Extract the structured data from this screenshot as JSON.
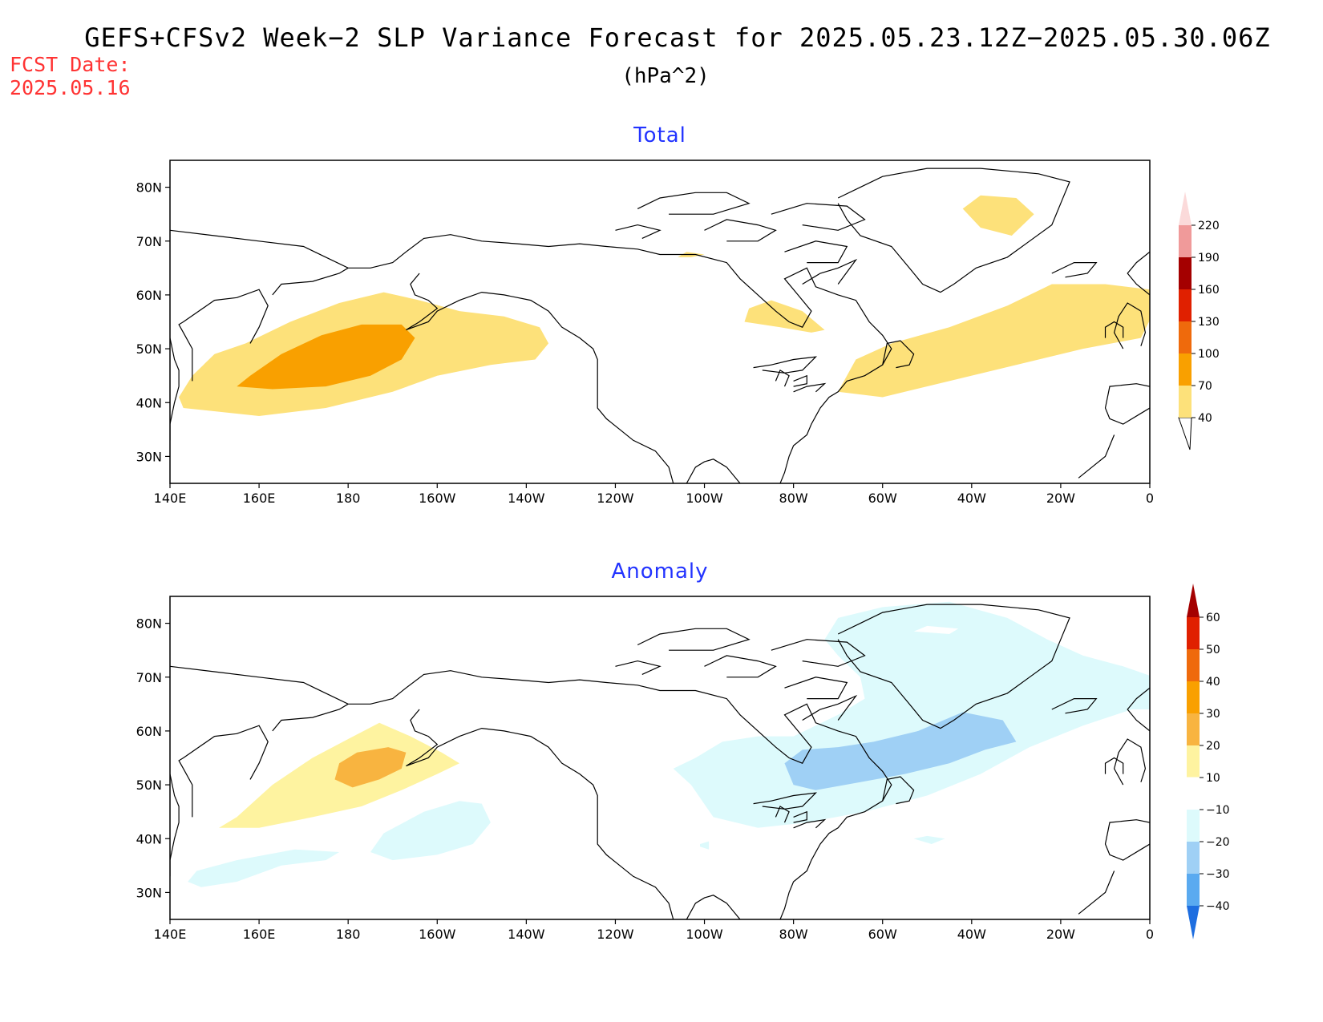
{
  "header": {
    "title": "GEFS+CFSv2 Week−2 SLP Variance Forecast for 2025.05.23.12Z−2025.05.30.06Z",
    "units": "(hPa^2)",
    "fcst_label": "FCST Date:",
    "fcst_date": "2025.05.16"
  },
  "colors": {
    "title_text": "#000000",
    "fcst_text": "#ff3333",
    "panel_title_text": "#2233ff",
    "coast": "#000000"
  },
  "axes": {
    "lon_labels": [
      "140E",
      "160E",
      "180",
      "160W",
      "140W",
      "120W",
      "100W",
      "80W",
      "60W",
      "40W",
      "20W",
      "0"
    ],
    "lon_values": [
      140,
      160,
      180,
      200,
      220,
      240,
      260,
      280,
      300,
      320,
      340,
      360
    ],
    "lat_labels": [
      "30N",
      "40N",
      "50N",
      "60N",
      "70N",
      "80N"
    ],
    "lat_values": [
      30,
      40,
      50,
      60,
      70,
      80
    ],
    "lon_range": [
      140,
      360
    ],
    "lat_range": [
      25,
      85
    ]
  },
  "panels": [
    {
      "title": "Total",
      "colorbar": {
        "levels": [
          "40",
          "70",
          "100",
          "130",
          "160",
          "190",
          "220"
        ],
        "colors": [
          "#fde17a",
          "#f9a000",
          "#ef6a0c",
          "#e02000",
          "#a40000",
          "#f09a9a",
          "#fbdada"
        ],
        "below_color": "#ffffff"
      },
      "fields": [
        {
          "level": 40,
          "color": "#fde17a",
          "lonlat": [
            [
              143,
              39
            ],
            [
              142,
              41
            ],
            [
              145,
              45
            ],
            [
              150,
              49
            ],
            [
              157,
              51
            ],
            [
              167,
              55
            ],
            [
              178,
              58.5
            ],
            [
              188,
              60.5
            ],
            [
              196,
              59
            ],
            [
              205,
              57
            ],
            [
              215,
              56
            ],
            [
              223,
              54
            ],
            [
              225,
              51
            ],
            [
              222,
              48
            ],
            [
              212,
              47
            ],
            [
              200,
              45
            ],
            [
              190,
              42
            ],
            [
              175,
              39
            ],
            [
              160,
              37.5
            ]
          ]
        },
        {
          "level": 70,
          "color": "#f9a000",
          "lonlat": [
            [
              155,
              43
            ],
            [
              158,
              45
            ],
            [
              165,
              49
            ],
            [
              174,
              52.5
            ],
            [
              183,
              54.5
            ],
            [
              192,
              54.5
            ],
            [
              195,
              52
            ],
            [
              192,
              48
            ],
            [
              185,
              45
            ],
            [
              175,
              43
            ],
            [
              163,
              42.5
            ]
          ]
        },
        {
          "level": 40,
          "color": "#fde17a",
          "lonlat": [
            [
              290,
              42
            ],
            [
              294,
              48
            ],
            [
              302,
              51
            ],
            [
              315,
              54
            ],
            [
              328,
              58
            ],
            [
              338,
              62
            ],
            [
              350,
              62
            ],
            [
              360,
              61
            ],
            [
              361,
              57
            ],
            [
              358,
              52
            ],
            [
              345,
              50
            ],
            [
              330,
              47
            ],
            [
              315,
              44
            ],
            [
              300,
              41
            ]
          ]
        },
        {
          "level": 40,
          "color": "#fde17a",
          "lonlat": [
            [
              269,
              55
            ],
            [
              270,
              57.5
            ],
            [
              275,
              59
            ],
            [
              282,
              57
            ],
            [
              287,
              53.5
            ],
            [
              284,
              53
            ],
            [
              277,
              54
            ]
          ]
        },
        {
          "level": 40,
          "color": "#fde17a",
          "lonlat": [
            [
              318,
              76
            ],
            [
              322,
              78.5
            ],
            [
              330,
              78
            ],
            [
              334,
              75
            ],
            [
              329,
              71
            ],
            [
              322,
              72.5
            ]
          ]
        },
        {
          "level": 40,
          "color": "#fde17a",
          "lonlat": [
            [
              254,
              67
            ],
            [
              256,
              68
            ],
            [
              260,
              67.5
            ],
            [
              257,
              67
            ]
          ]
        }
      ]
    },
    {
      "title": "Anomaly",
      "colorbar": {
        "levels": [
          "60",
          "50",
          "40",
          "30",
          "20",
          "10",
          "−10",
          "−20",
          "−30",
          "−40"
        ],
        "colors": [
          "#a40000",
          "#e02000",
          "#ef6a0c",
          "#f9a000",
          "#f8b440",
          "#fef3a0",
          "#ffffff",
          "#ddfafc",
          "#9fd0f5",
          "#5aaaf0",
          "#1e6ee0"
        ]
      },
      "fields": [
        {
          "level": 10,
          "color": "#fef3a0",
          "lonlat": [
            [
              151,
              42
            ],
            [
              155,
              44
            ],
            [
              163,
              50
            ],
            [
              172,
              55
            ],
            [
              180,
              58.5
            ],
            [
              187,
              61.5
            ],
            [
              194,
              59
            ],
            [
              201,
              56
            ],
            [
              205,
              54
            ],
            [
              200,
              52
            ],
            [
              192,
              49
            ],
            [
              183,
              46
            ],
            [
              172,
              44
            ],
            [
              160,
              42
            ]
          ]
        },
        {
          "level": 20,
          "color": "#f8b440",
          "lonlat": [
            [
              177,
              51
            ],
            [
              178,
              54
            ],
            [
              182,
              56
            ],
            [
              189,
              57
            ],
            [
              193,
              56
            ],
            [
              192,
              53
            ],
            [
              187,
              51
            ],
            [
              181,
              49.5
            ]
          ]
        },
        {
          "level": -10,
          "color": "#ddfafc",
          "lonlat": [
            [
              185,
              37.5
            ],
            [
              188,
              41
            ],
            [
              197,
              45
            ],
            [
              205,
              47
            ],
            [
              210,
              46.5
            ],
            [
              212,
              43
            ],
            [
              208,
              39
            ],
            [
              200,
              37
            ],
            [
              190,
              36
            ]
          ]
        },
        {
          "level": -10,
          "color": "#ddfafc",
          "lonlat": [
            [
              144,
              32
            ],
            [
              146,
              34
            ],
            [
              155,
              36
            ],
            [
              168,
              38
            ],
            [
              178,
              37.5
            ],
            [
              175,
              36
            ],
            [
              165,
              35
            ],
            [
              155,
              32
            ],
            [
              147,
              31
            ]
          ]
        },
        {
          "level": -10,
          "color": "#ddfafc",
          "lonlat": [
            [
              253,
              53
            ],
            [
              257,
              50
            ],
            [
              262,
              44
            ],
            [
              272,
              42
            ],
            [
              283,
              43
            ],
            [
              296,
              45
            ],
            [
              310,
              48
            ],
            [
              322,
              52
            ],
            [
              333,
              57
            ],
            [
              345,
              61
            ],
            [
              356,
              64
            ],
            [
              361,
              64
            ],
            [
              361,
              70
            ],
            [
              354,
              72
            ],
            [
              345,
              74
            ],
            [
              337,
              77
            ],
            [
              328,
              81
            ],
            [
              315,
              84
            ],
            [
              300,
              83
            ],
            [
              290,
              81
            ],
            [
              287,
              77
            ],
            [
              290,
              74
            ],
            [
              295,
              70
            ],
            [
              296,
              66
            ],
            [
              290,
              63
            ],
            [
              280,
              59
            ],
            [
              272,
              59
            ],
            [
              264,
              58
            ],
            [
              258,
              55
            ]
          ]
        },
        {
          "level": -20,
          "color": "#9fd0f5",
          "lonlat": [
            [
              280,
              50
            ],
            [
              285,
              49
            ],
            [
              295,
              50.5
            ],
            [
              305,
              52
            ],
            [
              315,
              54
            ],
            [
              323,
              56.5
            ],
            [
              330,
              58
            ],
            [
              327,
              62
            ],
            [
              318,
              63.5
            ],
            [
              308,
              60
            ],
            [
              298,
              58
            ],
            [
              290,
              57
            ],
            [
              282,
              56.5
            ],
            [
              278,
              54
            ]
          ]
        },
        {
          "level": 10,
          "color": "#ffffff",
          "lonlat": [
            [
              307,
              78.5
            ],
            [
              310,
              79.5
            ],
            [
              317,
              79
            ],
            [
              315,
              78
            ]
          ]
        },
        {
          "level": -10,
          "color": "#ddfafc",
          "lonlat": [
            [
              259,
              39
            ],
            [
              261,
              39.5
            ],
            [
              261,
              38
            ],
            [
              259,
              38.5
            ]
          ]
        },
        {
          "level": -10,
          "color": "#ddfafc",
          "lonlat": [
            [
              307,
              40
            ],
            [
              310,
              40.5
            ],
            [
              314,
              40
            ],
            [
              311,
              39
            ]
          ]
        }
      ]
    }
  ]
}
